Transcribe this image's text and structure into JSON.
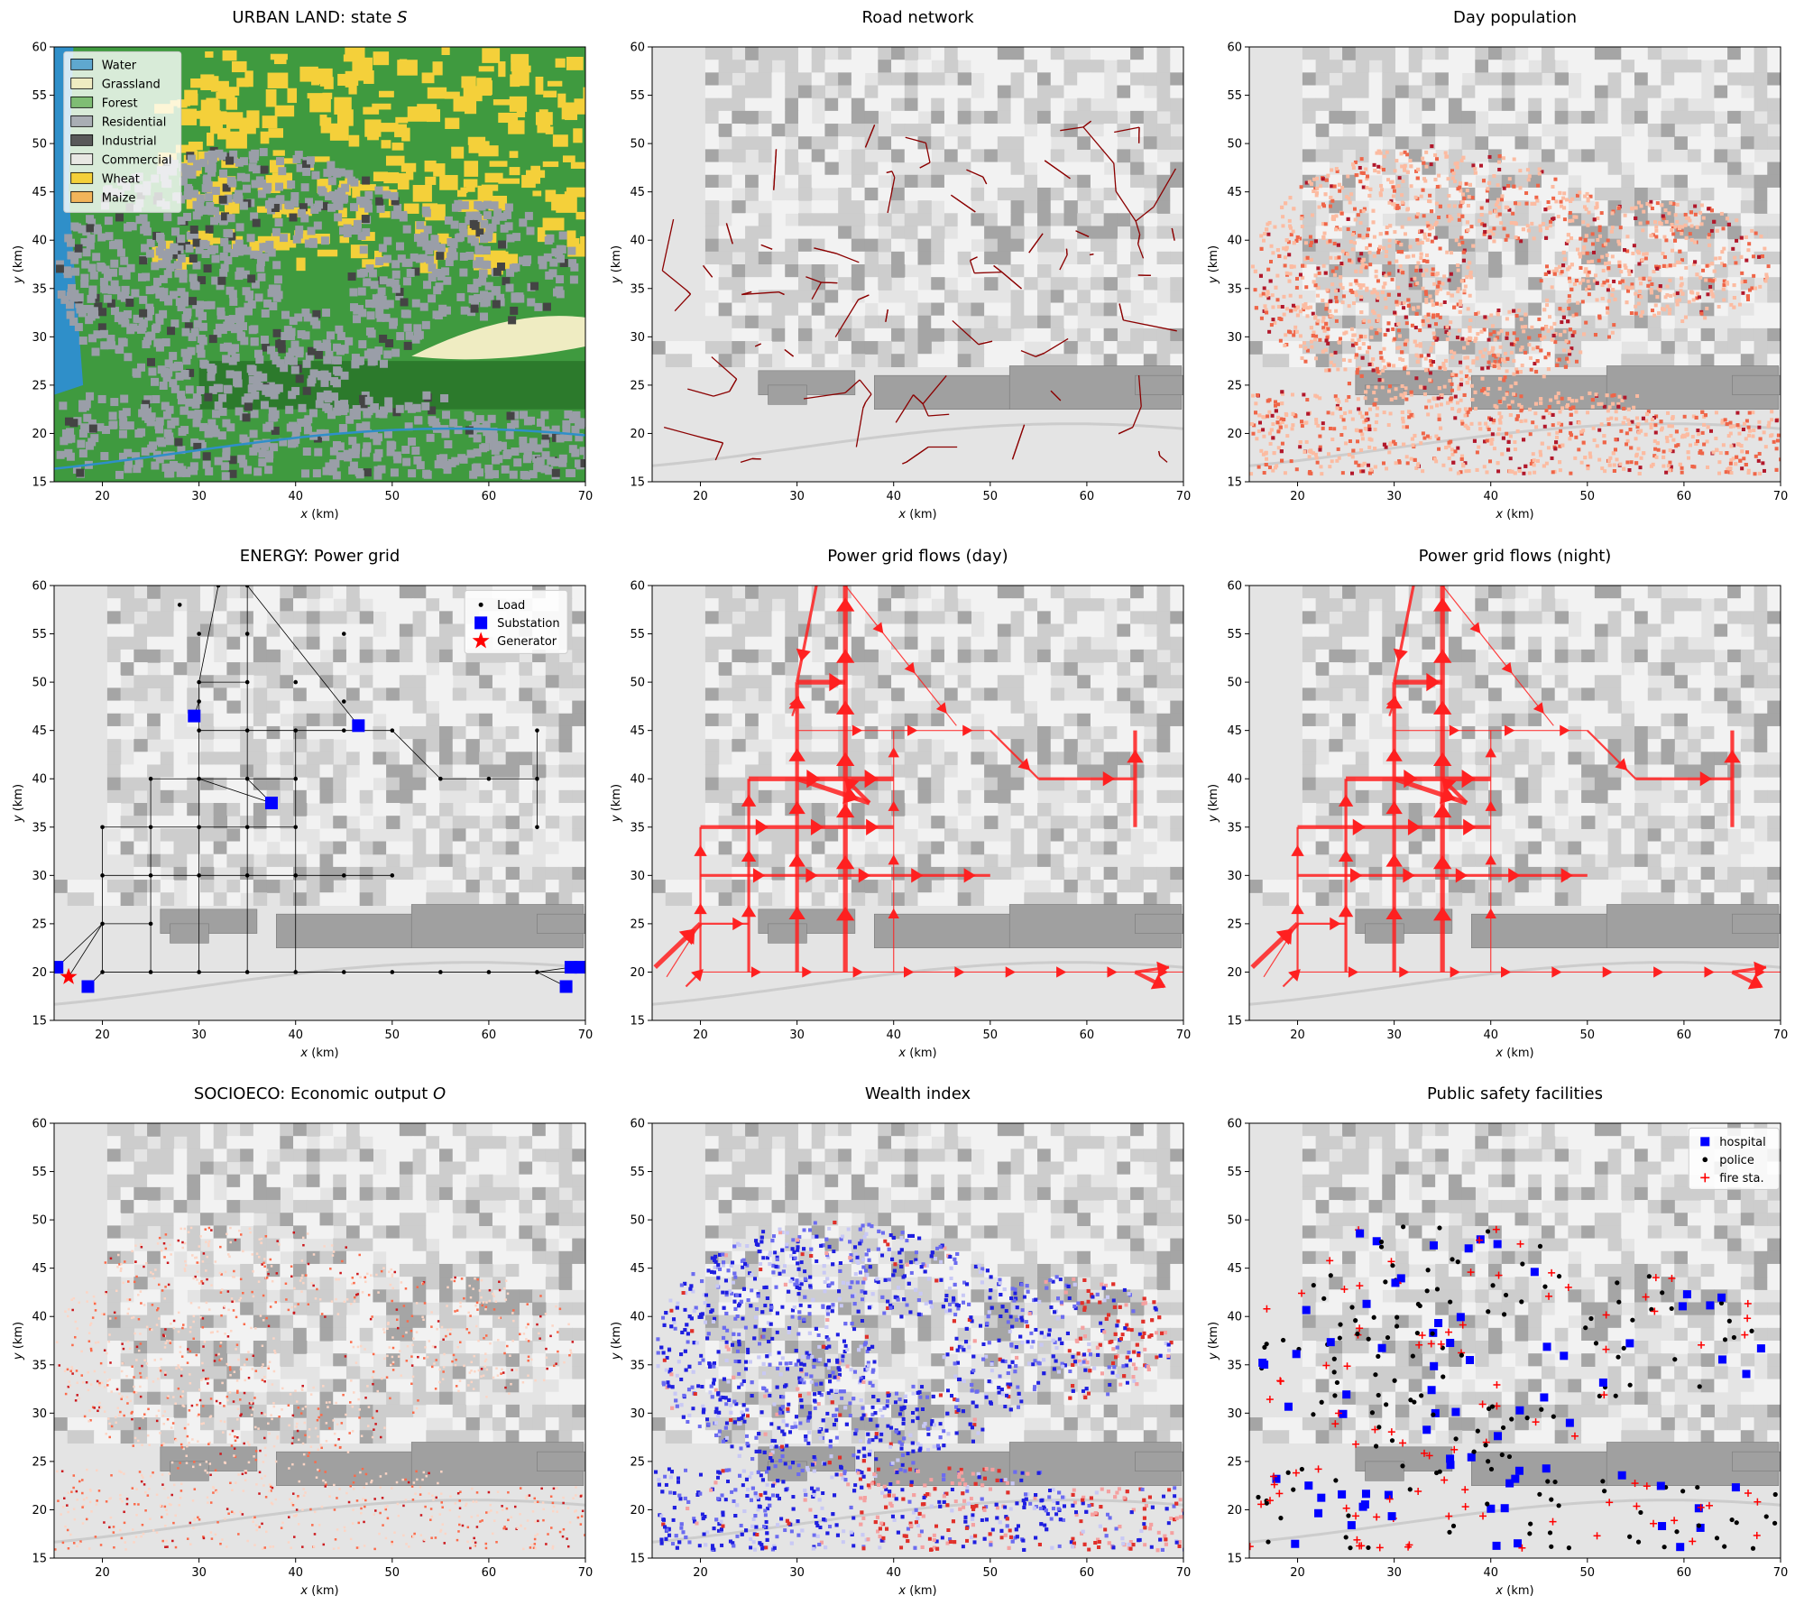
{
  "figure": {
    "panels": [
      {
        "id": "urban",
        "title_pre": "URBAN LAND: state ",
        "title_it": "S",
        "kind": "urban",
        "legend": [
          {
            "label": "Water",
            "color": "#5fa8cf"
          },
          {
            "label": "Grassland",
            "color": "#efecc2"
          },
          {
            "label": "Forest",
            "color": "#7fbd74"
          },
          {
            "label": "Residential",
            "color": "#a9aeb4"
          },
          {
            "label": "Industrial",
            "color": "#595959"
          },
          {
            "label": "Commercial",
            "color": "#e8e8e3"
          },
          {
            "label": "Wheat",
            "color": "#f4d03a"
          },
          {
            "label": "Maize",
            "color": "#f2b45a"
          }
        ]
      },
      {
        "id": "road",
        "title_pre": "Road network",
        "title_it": "",
        "kind": "road"
      },
      {
        "id": "daypop",
        "title_pre": "Day population",
        "title_it": "",
        "kind": "daypop"
      },
      {
        "id": "grid",
        "title_pre": "ENERGY: Power grid",
        "title_it": "",
        "kind": "grid",
        "legend": [
          {
            "label": "Load",
            "symbol": "dot",
            "color": "#000000"
          },
          {
            "label": "Substation",
            "symbol": "square",
            "color": "#0000ff"
          },
          {
            "label": "Generator",
            "symbol": "star",
            "color": "#ff0000"
          }
        ]
      },
      {
        "id": "flowday",
        "title_pre": "Power grid flows (day)",
        "title_it": "",
        "kind": "flowday"
      },
      {
        "id": "flownight",
        "title_pre": "Power grid flows (night)",
        "title_it": "",
        "kind": "flownight"
      },
      {
        "id": "econ",
        "title_pre": "SOCIOECO: Economic output ",
        "title_it": "O",
        "kind": "econ"
      },
      {
        "id": "wealth",
        "title_pre": "Wealth index",
        "title_it": "",
        "kind": "wealth"
      },
      {
        "id": "safety",
        "title_pre": "Public safety facilities",
        "title_it": "",
        "kind": "safety",
        "legend": [
          {
            "label": "hospital",
            "symbol": "square",
            "color": "#0000ff"
          },
          {
            "label": "police",
            "symbol": "dot",
            "color": "#000000"
          },
          {
            "label": "fire sta.",
            "symbol": "plus",
            "color": "#ff0000"
          }
        ]
      }
    ],
    "axes": {
      "xlabel_var": "x",
      "xlabel_unit": " (km)",
      "ylabel_var": "y",
      "ylabel_unit": " (km)",
      "x_ticks": [
        "20",
        "30",
        "40",
        "50",
        "60",
        "70"
      ],
      "y_ticks": [
        "15",
        "20",
        "25",
        "30",
        "35",
        "40",
        "45",
        "50",
        "55",
        "60"
      ]
    },
    "colors": {
      "road": "#8b0000",
      "flow": "#ff2020",
      "substation": "#0000ff",
      "generator": "#ff0000",
      "hillshade_light": "#f2f2f2",
      "hillshade_dark": "#8c8c8c",
      "plain": "#e4e4e4"
    }
  },
  "chart_data": {
    "type": "map",
    "extent": {
      "xlim": [
        15,
        70
      ],
      "ylim": [
        15,
        60
      ],
      "units": "km"
    },
    "power_grid": {
      "loads": [
        [
          20,
          20
        ],
        [
          25,
          20
        ],
        [
          30,
          20
        ],
        [
          35,
          20
        ],
        [
          40,
          20
        ],
        [
          45,
          20
        ],
        [
          50,
          20
        ],
        [
          55,
          20
        ],
        [
          60,
          20
        ],
        [
          65,
          20
        ],
        [
          20,
          25
        ],
        [
          25,
          25
        ],
        [
          20,
          30
        ],
        [
          25,
          30
        ],
        [
          30,
          30
        ],
        [
          35,
          30
        ],
        [
          40,
          30
        ],
        [
          45,
          30
        ],
        [
          50,
          30
        ],
        [
          20,
          35
        ],
        [
          25,
          35
        ],
        [
          30,
          35
        ],
        [
          35,
          35
        ],
        [
          40,
          35
        ],
        [
          25,
          40
        ],
        [
          30,
          40
        ],
        [
          35,
          40
        ],
        [
          40,
          40
        ],
        [
          30,
          45
        ],
        [
          35,
          45
        ],
        [
          40,
          45
        ],
        [
          45,
          45
        ],
        [
          50,
          45
        ],
        [
          55,
          40
        ],
        [
          60,
          40
        ],
        [
          65,
          40
        ],
        [
          65,
          45
        ],
        [
          65,
          35
        ],
        [
          30,
          50
        ],
        [
          35,
          50
        ],
        [
          30,
          48
        ],
        [
          35,
          60
        ],
        [
          40,
          50
        ],
        [
          45,
          48
        ],
        [
          35,
          55
        ],
        [
          30,
          55
        ],
        [
          32,
          60
        ],
        [
          28,
          58
        ],
        [
          45,
          55
        ]
      ],
      "substations": [
        [
          29.5,
          46.5
        ],
        [
          46.5,
          45.5
        ],
        [
          37.5,
          37.5
        ],
        [
          15.3,
          20.5
        ],
        [
          18.5,
          18.5
        ],
        [
          68.5,
          20.5
        ],
        [
          68,
          18.5
        ],
        [
          69.5,
          20.5
        ]
      ],
      "generators": [
        [
          16.5,
          19.5
        ]
      ]
    },
    "public_safety_counts_note": "points scattered over urban area"
  }
}
